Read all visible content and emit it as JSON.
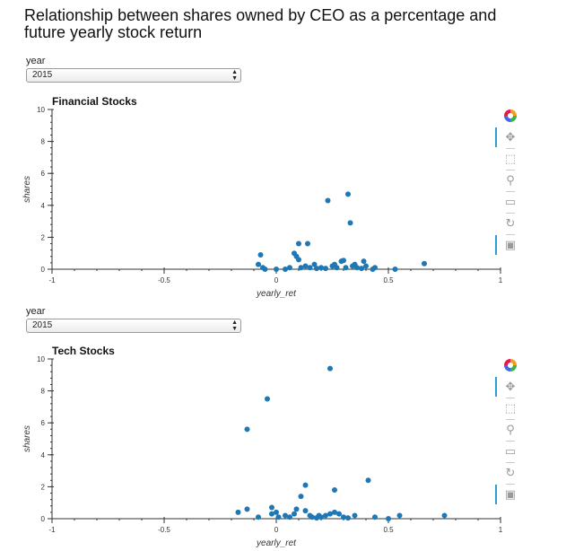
{
  "page": {
    "title": "Relationship between shares owned by CEO as a percentage and future yearly stock return"
  },
  "selectors": [
    {
      "label": "year",
      "value": "2015",
      "options": [
        "2015"
      ]
    },
    {
      "label": "year",
      "value": "2015",
      "options": [
        "2015"
      ]
    }
  ],
  "toolbar": {
    "icons": [
      "bokeh-logo-icon",
      "pan-icon",
      "box-zoom-icon",
      "wheel-zoom-icon",
      "save-icon",
      "reset-icon",
      "hover-icon"
    ],
    "accent_color": "#2d9fd6"
  },
  "chart_data": [
    {
      "type": "scatter",
      "title": "Financial Stocks",
      "xlabel": "yearly_ret",
      "ylabel": "shares",
      "xlim": [
        -1,
        1
      ],
      "ylim": [
        0,
        10
      ],
      "x_ticks": [
        -1,
        -0.5,
        0,
        0.5,
        1
      ],
      "x_tick_labels": [
        "-1",
        "-0.5",
        "0",
        "0.5",
        "1"
      ],
      "y_ticks": [
        0,
        2,
        4,
        6,
        8,
        10
      ],
      "y_tick_labels": [
        "0",
        "2",
        "4",
        "6",
        "8",
        "10"
      ],
      "marker_color": "#1f77b4",
      "points": [
        [
          -0.07,
          0.9
        ],
        [
          -0.08,
          0.3
        ],
        [
          -0.05,
          0.0
        ],
        [
          -0.06,
          0.1
        ],
        [
          0.0,
          0.0
        ],
        [
          0.04,
          0.0
        ],
        [
          0.06,
          0.1
        ],
        [
          0.08,
          1.0
        ],
        [
          0.09,
          0.8
        ],
        [
          0.1,
          0.6
        ],
        [
          0.1,
          1.6
        ],
        [
          0.14,
          1.6
        ],
        [
          0.11,
          0.1
        ],
        [
          0.13,
          0.2
        ],
        [
          0.15,
          0.1
        ],
        [
          0.17,
          0.3
        ],
        [
          0.18,
          0.05
        ],
        [
          0.2,
          0.1
        ],
        [
          0.22,
          0.05
        ],
        [
          0.23,
          4.3
        ],
        [
          0.25,
          0.2
        ],
        [
          0.27,
          0.1
        ],
        [
          0.29,
          0.5
        ],
        [
          0.3,
          0.55
        ],
        [
          0.31,
          0.1
        ],
        [
          0.32,
          4.7
        ],
        [
          0.33,
          2.9
        ],
        [
          0.34,
          0.2
        ],
        [
          0.35,
          0.3
        ],
        [
          0.36,
          0.1
        ],
        [
          0.38,
          0.05
        ],
        [
          0.39,
          0.5
        ],
        [
          0.4,
          0.2
        ],
        [
          0.43,
          0.0
        ],
        [
          0.53,
          0.0
        ],
        [
          0.66,
          0.35
        ],
        [
          0.44,
          0.1
        ],
        [
          0.26,
          0.3
        ]
      ]
    },
    {
      "type": "scatter",
      "title": "Tech Stocks",
      "xlabel": "yearly_ret",
      "ylabel": "shares",
      "xlim": [
        -1,
        1
      ],
      "ylim": [
        0,
        10
      ],
      "x_ticks": [
        -1,
        -0.5,
        0,
        0.5,
        1
      ],
      "x_tick_labels": [
        "-1",
        "-0.5",
        "0",
        "0.5",
        "1"
      ],
      "y_ticks": [
        0,
        2,
        4,
        6,
        8,
        10
      ],
      "y_tick_labels": [
        "0",
        "2",
        "4",
        "6",
        "8",
        "10"
      ],
      "marker_color": "#1f77b4",
      "points": [
        [
          -0.17,
          0.4
        ],
        [
          -0.13,
          0.6
        ],
        [
          -0.13,
          5.6
        ],
        [
          -0.04,
          7.5
        ],
        [
          -0.08,
          0.1
        ],
        [
          -0.02,
          0.7
        ],
        [
          -0.02,
          0.3
        ],
        [
          0.0,
          0.4
        ],
        [
          0.01,
          0.1
        ],
        [
          0.04,
          0.2
        ],
        [
          0.06,
          0.1
        ],
        [
          0.08,
          0.3
        ],
        [
          0.11,
          1.4
        ],
        [
          0.13,
          2.1
        ],
        [
          0.13,
          0.5
        ],
        [
          0.15,
          0.2
        ],
        [
          0.16,
          0.1
        ],
        [
          0.18,
          0.05
        ],
        [
          0.2,
          0.1
        ],
        [
          0.22,
          0.2
        ],
        [
          0.24,
          0.3
        ],
        [
          0.24,
          9.4
        ],
        [
          0.26,
          1.8
        ],
        [
          0.26,
          0.4
        ],
        [
          0.28,
          0.3
        ],
        [
          0.3,
          0.1
        ],
        [
          0.32,
          0.05
        ],
        [
          0.35,
          0.2
        ],
        [
          0.41,
          2.4
        ],
        [
          0.44,
          0.1
        ],
        [
          0.5,
          0.0
        ],
        [
          0.55,
          0.2
        ],
        [
          0.75,
          0.2
        ],
        [
          0.09,
          0.6
        ],
        [
          0.19,
          0.2
        ]
      ]
    }
  ]
}
